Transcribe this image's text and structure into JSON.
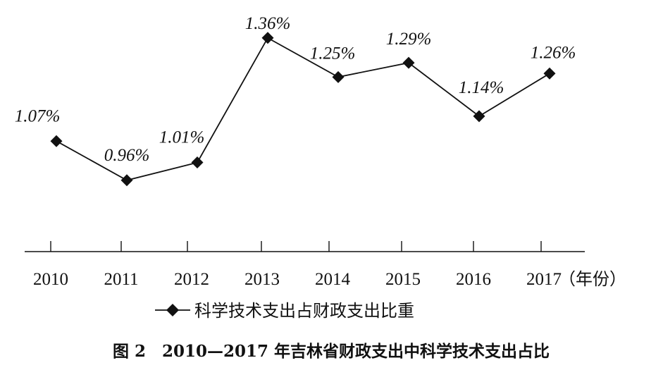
{
  "chart_data": {
    "type": "line",
    "categories": [
      "2010",
      "2011",
      "2012",
      "2013",
      "2014",
      "2015",
      "2016",
      "2017"
    ],
    "series": [
      {
        "name": "科学技术支出占财政支出比重",
        "values": [
          1.07,
          0.96,
          1.01,
          1.36,
          1.25,
          1.29,
          1.14,
          1.26
        ],
        "labels": [
          "1.07%",
          "0.96%",
          "1.01%",
          "1.36%",
          "1.25%",
          "1.29%",
          "1.14%",
          "1.26%"
        ],
        "marker": "diamond",
        "color": "#111111"
      }
    ],
    "x_unit": "（年份）",
    "caption": "图 2　2010—2017 年吉林省财政支出中科学技术支出占比",
    "ylim": [
      0.8,
      1.4
    ],
    "grid": false,
    "y_axis_shown": false,
    "legend": "bottom-center"
  }
}
